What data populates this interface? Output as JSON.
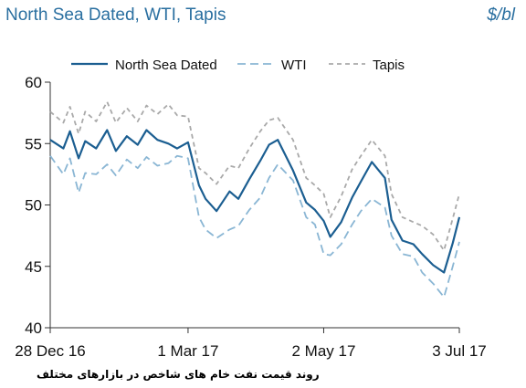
{
  "header": {
    "title": "North Sea Dated, WTI, Tapis",
    "unit": "$/bl"
  },
  "caption": "روند قیمت نفت خام های شاخص در بازارهای مختلف",
  "chart_data": {
    "type": "line",
    "title": "North Sea Dated, WTI, Tapis",
    "ylabel": "$/bl",
    "ylim": [
      40,
      60
    ],
    "yticks": [
      40,
      45,
      50,
      55,
      60
    ],
    "xlim": [
      "2016-12-28",
      "2017-07-03"
    ],
    "xticks": [
      {
        "date": "2016-12-28",
        "label": "28 Dec 16"
      },
      {
        "date": "2017-03-01",
        "label": "1 Mar 17"
      },
      {
        "date": "2017-05-02",
        "label": "2 May 17"
      },
      {
        "date": "2017-07-03",
        "label": "3 Jul 17"
      }
    ],
    "legend_position": "top",
    "grid": false,
    "series": [
      {
        "name": "North Sea Dated",
        "color": "#1b5e91",
        "style": "solid",
        "x": [
          "2016-12-28",
          "2017-01-03",
          "2017-01-06",
          "2017-01-10",
          "2017-01-13",
          "2017-01-18",
          "2017-01-23",
          "2017-01-27",
          "2017-02-01",
          "2017-02-06",
          "2017-02-10",
          "2017-02-15",
          "2017-02-20",
          "2017-02-24",
          "2017-03-01",
          "2017-03-06",
          "2017-03-09",
          "2017-03-14",
          "2017-03-20",
          "2017-03-24",
          "2017-03-29",
          "2017-04-03",
          "2017-04-07",
          "2017-04-11",
          "2017-04-18",
          "2017-04-24",
          "2017-04-28",
          "2017-05-02",
          "2017-05-05",
          "2017-05-10",
          "2017-05-15",
          "2017-05-19",
          "2017-05-24",
          "2017-05-30",
          "2017-06-02",
          "2017-06-07",
          "2017-06-12",
          "2017-06-16",
          "2017-06-21",
          "2017-06-26",
          "2017-06-30",
          "2017-07-03"
        ],
        "values": [
          55.3,
          54.6,
          56.0,
          53.8,
          55.2,
          54.6,
          56.1,
          54.4,
          55.6,
          54.9,
          56.1,
          55.3,
          55.0,
          54.6,
          55.1,
          51.6,
          50.5,
          49.5,
          51.1,
          50.5,
          52.1,
          53.6,
          54.9,
          55.3,
          52.8,
          50.2,
          49.6,
          48.7,
          47.4,
          48.6,
          50.6,
          51.9,
          53.5,
          52.2,
          48.8,
          47.1,
          46.8,
          46.0,
          45.1,
          44.5,
          46.9,
          49.0
        ]
      },
      {
        "name": "WTI",
        "color": "#8ab6d4",
        "style": "dashed",
        "x": [
          "2016-12-28",
          "2017-01-03",
          "2017-01-06",
          "2017-01-10",
          "2017-01-13",
          "2017-01-18",
          "2017-01-23",
          "2017-01-27",
          "2017-02-01",
          "2017-02-06",
          "2017-02-10",
          "2017-02-15",
          "2017-02-20",
          "2017-02-24",
          "2017-03-01",
          "2017-03-06",
          "2017-03-09",
          "2017-03-14",
          "2017-03-20",
          "2017-03-24",
          "2017-03-29",
          "2017-04-03",
          "2017-04-07",
          "2017-04-11",
          "2017-04-18",
          "2017-04-24",
          "2017-04-28",
          "2017-05-02",
          "2017-05-05",
          "2017-05-10",
          "2017-05-15",
          "2017-05-19",
          "2017-05-24",
          "2017-05-30",
          "2017-06-02",
          "2017-06-07",
          "2017-06-12",
          "2017-06-16",
          "2017-06-21",
          "2017-06-26",
          "2017-06-30",
          "2017-07-03"
        ],
        "values": [
          54.0,
          52.5,
          53.8,
          51.0,
          52.6,
          52.5,
          53.3,
          52.4,
          53.7,
          53.0,
          53.9,
          53.2,
          53.4,
          54.0,
          53.8,
          49.0,
          48.0,
          47.3,
          48.0,
          48.3,
          49.6,
          50.6,
          52.2,
          53.3,
          52.0,
          49.0,
          48.4,
          46.0,
          45.9,
          46.8,
          48.4,
          49.5,
          50.5,
          49.8,
          47.5,
          46.0,
          45.8,
          44.5,
          43.6,
          42.5,
          45.0,
          47.0
        ]
      },
      {
        "name": "Tapis",
        "color": "#a9a9a9",
        "style": "dashed",
        "x": [
          "2016-12-28",
          "2017-01-03",
          "2017-01-06",
          "2017-01-10",
          "2017-01-13",
          "2017-01-18",
          "2017-01-23",
          "2017-01-27",
          "2017-02-01",
          "2017-02-06",
          "2017-02-10",
          "2017-02-15",
          "2017-02-20",
          "2017-02-24",
          "2017-03-01",
          "2017-03-06",
          "2017-03-09",
          "2017-03-14",
          "2017-03-20",
          "2017-03-24",
          "2017-03-29",
          "2017-04-03",
          "2017-04-07",
          "2017-04-11",
          "2017-04-18",
          "2017-04-24",
          "2017-04-28",
          "2017-05-02",
          "2017-05-05",
          "2017-05-10",
          "2017-05-15",
          "2017-05-19",
          "2017-05-24",
          "2017-05-30",
          "2017-06-02",
          "2017-06-07",
          "2017-06-12",
          "2017-06-16",
          "2017-06-21",
          "2017-06-26",
          "2017-06-30",
          "2017-07-03"
        ],
        "values": [
          57.6,
          56.7,
          58.0,
          55.8,
          57.6,
          56.8,
          58.4,
          56.7,
          57.9,
          56.8,
          58.1,
          57.4,
          58.2,
          57.3,
          57.2,
          53.0,
          52.6,
          51.7,
          53.2,
          53.0,
          54.6,
          56.0,
          56.9,
          57.1,
          55.3,
          52.2,
          51.6,
          50.9,
          49.0,
          50.7,
          52.9,
          54.0,
          55.3,
          54.0,
          50.9,
          49.0,
          48.6,
          48.3,
          47.6,
          46.3,
          48.9,
          50.9
        ]
      }
    ]
  }
}
